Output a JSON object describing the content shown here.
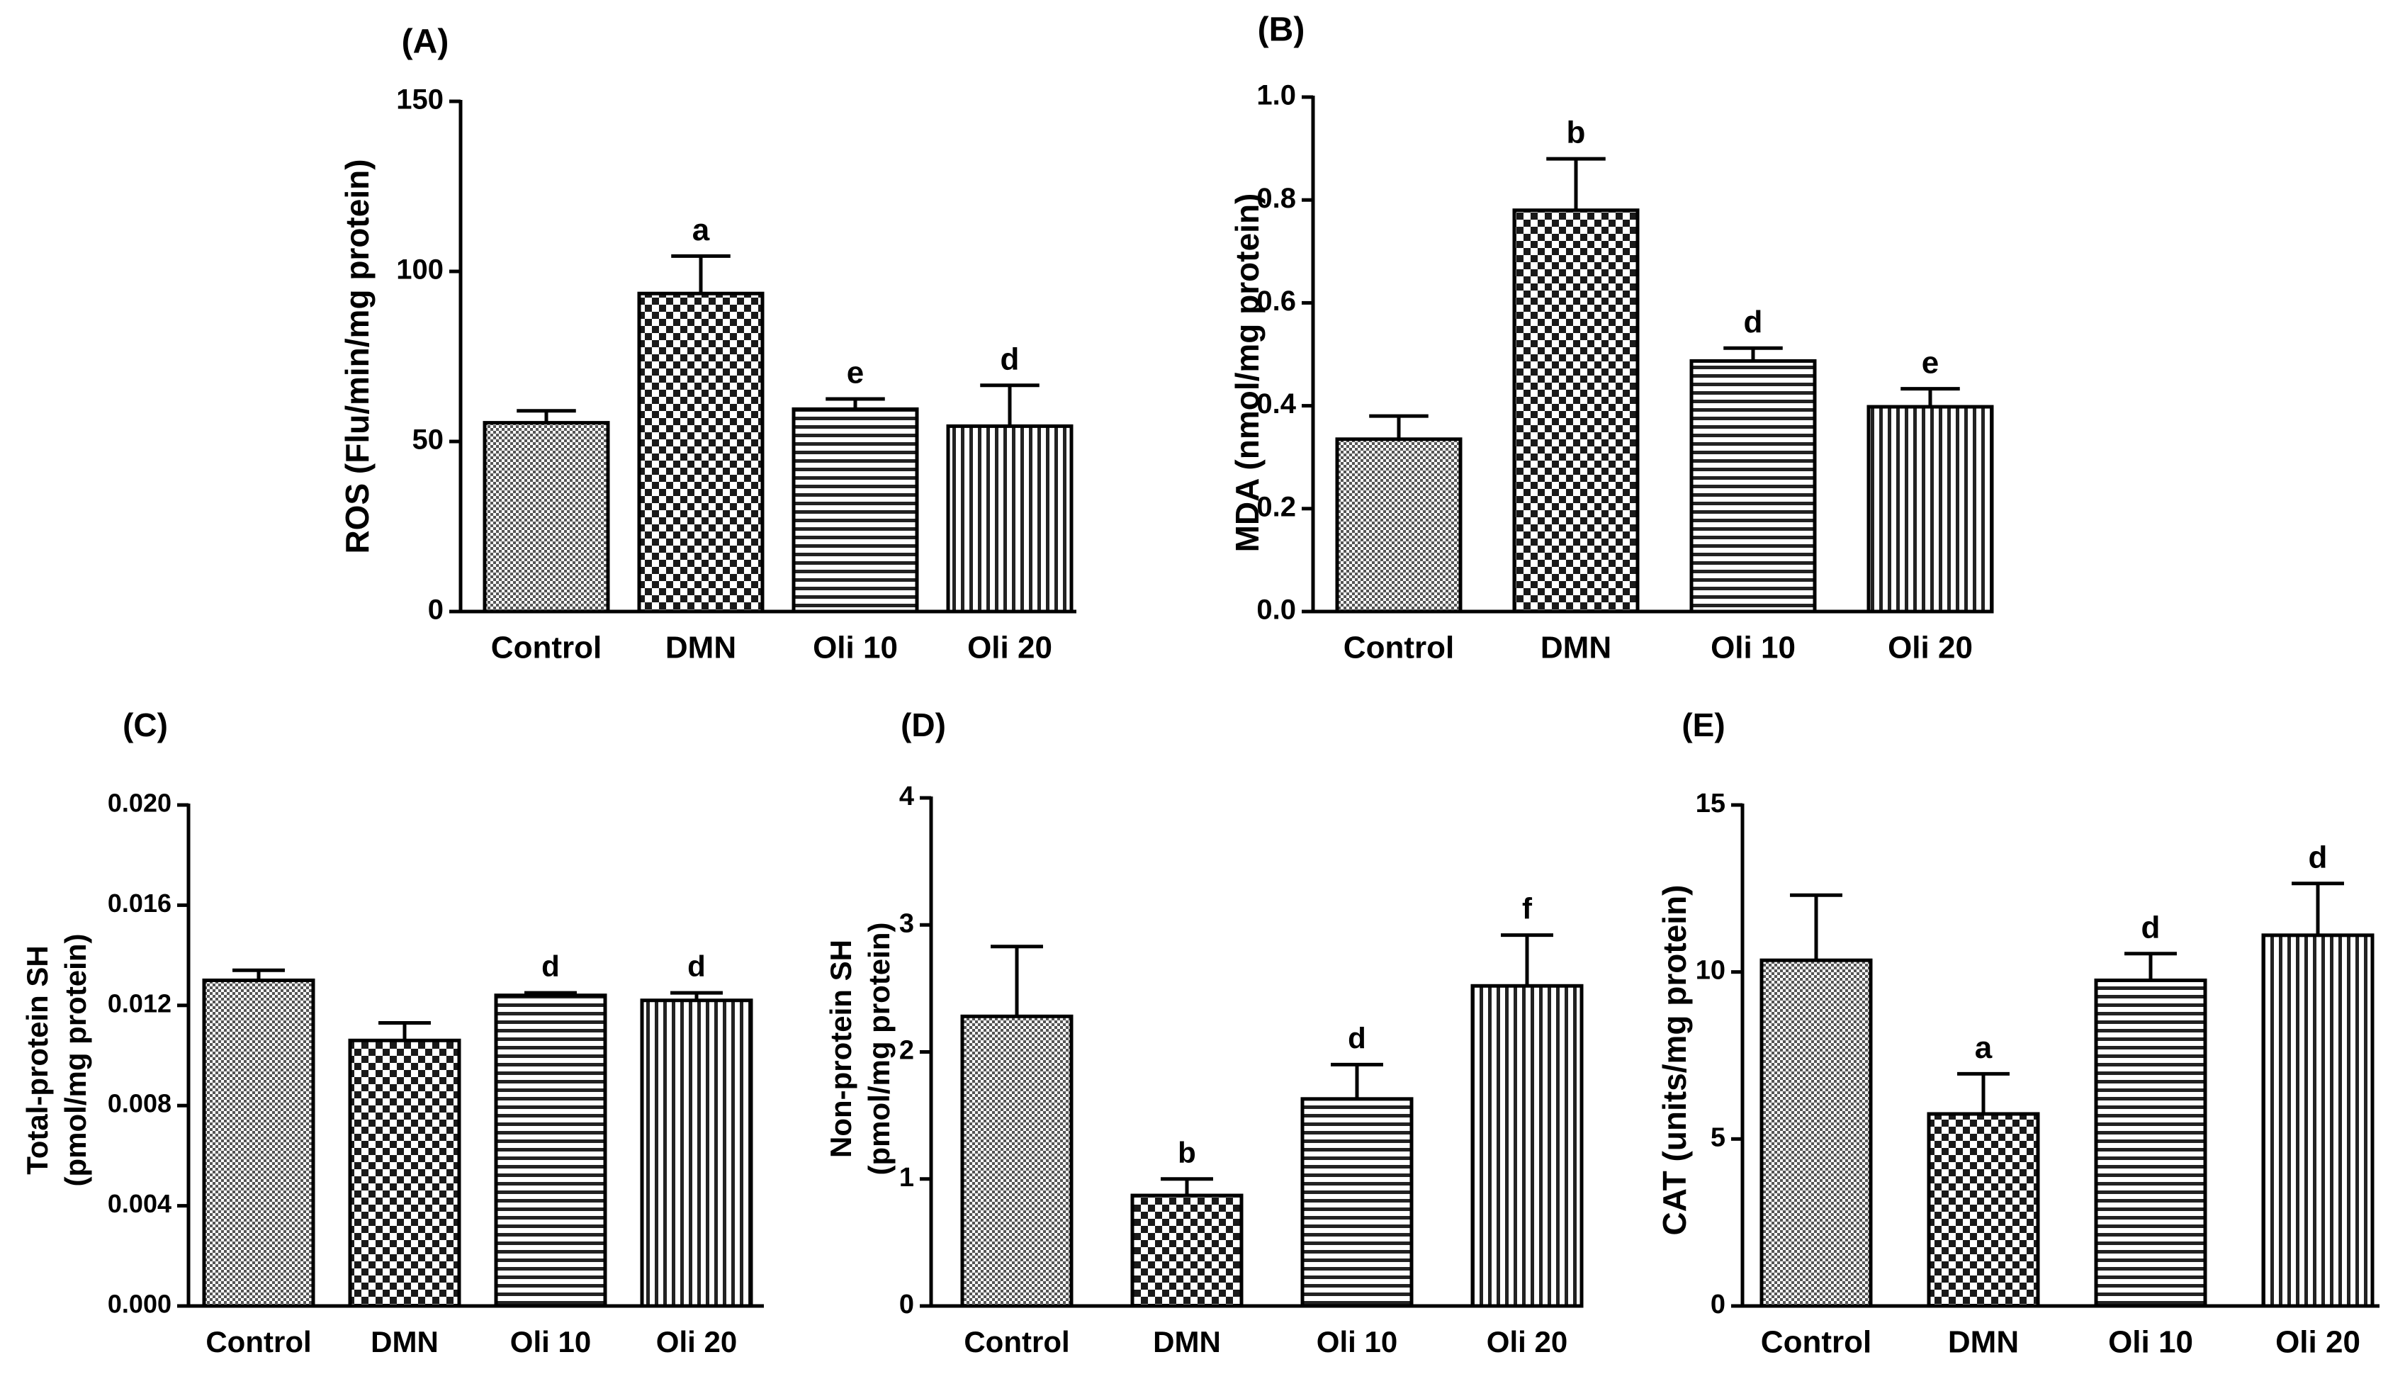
{
  "colors": {
    "ink": "#000000",
    "background": "#ffffff"
  },
  "chart_data": [
    {
      "panel": "(A)",
      "type": "bar",
      "title": "(A)",
      "ylabel": "ROS (Flu/min/mg protein)",
      "xlabel": "",
      "ylim": [
        0,
        150
      ],
      "yticks": [
        0,
        50,
        100,
        150
      ],
      "ytick_labels": [
        "0",
        "50",
        "100",
        "150"
      ],
      "categories": [
        "Control",
        "DMN",
        "Oli 10",
        "Oli 20"
      ],
      "values": [
        55.5,
        93.5,
        59.5,
        54.5
      ],
      "errors": [
        3.5,
        11,
        3,
        12
      ],
      "significance": [
        "",
        "a",
        "e",
        "d"
      ],
      "patterns": [
        "dots",
        "checker",
        "horizontal",
        "vertical"
      ],
      "grid": false
    },
    {
      "panel": "(B)",
      "type": "bar",
      "title": "(B)",
      "ylabel": "MDA (nmol/mg protein)",
      "xlabel": "",
      "ylim": [
        0,
        1.0
      ],
      "yticks": [
        0,
        0.2,
        0.4,
        0.6,
        0.8,
        1.0
      ],
      "ytick_labels": [
        "0.0",
        "0.2",
        "0.4",
        "0.6",
        "0.8",
        "1.0"
      ],
      "categories": [
        "Control",
        "DMN",
        "Oli 10",
        "Oli 20"
      ],
      "values": [
        0.335,
        0.78,
        0.487,
        0.398
      ],
      "errors": [
        0.045,
        0.1,
        0.025,
        0.035
      ],
      "significance": [
        "",
        "b",
        "d",
        "e"
      ],
      "patterns": [
        "dots",
        "checker",
        "horizontal",
        "vertical"
      ],
      "grid": false
    },
    {
      "panel": "(C)",
      "type": "bar",
      "title": "(C)",
      "ylabel": "Total-protein SH",
      "ylabel2": "(pmol/mg protein)",
      "xlabel": "",
      "ylim": [
        0,
        0.02
      ],
      "yticks": [
        0,
        0.004,
        0.008,
        0.012,
        0.016,
        0.02
      ],
      "ytick_labels": [
        "0.000",
        "0.004",
        "0.008",
        "0.012",
        "0.016",
        "0.020"
      ],
      "categories": [
        "Control",
        "DMN",
        "Oli 10",
        "Oli 20"
      ],
      "values": [
        0.013,
        0.0106,
        0.0124,
        0.0122
      ],
      "errors": [
        0.0004,
        0.0007,
        0.0001,
        0.0003
      ],
      "significance": [
        "",
        "",
        "d",
        "d"
      ],
      "patterns": [
        "dots",
        "checker",
        "horizontal",
        "vertical"
      ],
      "grid": false
    },
    {
      "panel": "(D)",
      "type": "bar",
      "title": "(D)",
      "ylabel": "Non-protein SH",
      "ylabel2": "(pmol/mg protein)",
      "xlabel": "",
      "ylim": [
        0,
        4
      ],
      "yticks": [
        0,
        1,
        2,
        3,
        4
      ],
      "ytick_labels": [
        "0",
        "1",
        "2",
        "3",
        "4"
      ],
      "categories": [
        "Control",
        "DMN",
        "Oli 10",
        "Oli 20"
      ],
      "values": [
        2.28,
        0.87,
        1.63,
        2.52
      ],
      "errors": [
        0.55,
        0.13,
        0.27,
        0.4
      ],
      "significance": [
        "",
        "b",
        "d",
        "f"
      ],
      "patterns": [
        "dots",
        "checker",
        "horizontal",
        "vertical"
      ],
      "grid": false
    },
    {
      "panel": "(E)",
      "type": "bar",
      "title": "(E)",
      "ylabel": "CAT (units/mg protein)",
      "xlabel": "",
      "ylim": [
        0,
        15
      ],
      "yticks": [
        0,
        5,
        10,
        15
      ],
      "ytick_labels": [
        "0",
        "5",
        "10",
        "15"
      ],
      "categories": [
        "Control",
        "DMN",
        "Oli 10",
        "Oli 20"
      ],
      "values": [
        10.35,
        5.75,
        9.75,
        11.1
      ],
      "errors": [
        1.95,
        1.2,
        0.8,
        1.55
      ],
      "significance": [
        "",
        "a",
        "d",
        "d"
      ],
      "patterns": [
        "dots",
        "checker",
        "horizontal",
        "vertical"
      ],
      "grid": false
    }
  ]
}
